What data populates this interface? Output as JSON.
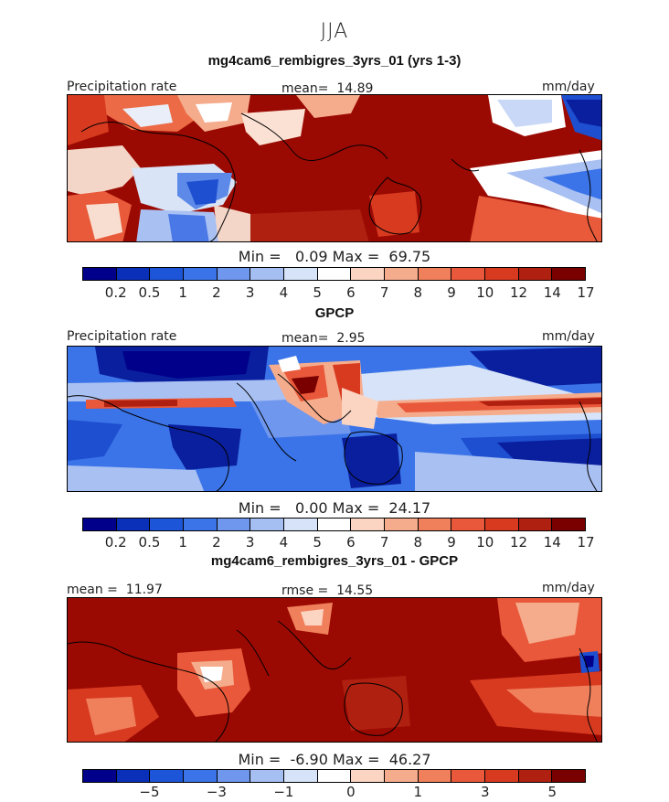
{
  "season": "JJA",
  "panels": [
    {
      "title": "mg4cam6_rembigres_3yrs_01 (yrs 1-3)",
      "left_label": "Precipitation rate",
      "center_label": "mean=  14.89",
      "right_label": "mm/day",
      "minmax": "Min =   0.09 Max =  69.75",
      "ticks": [
        "0.2",
        "0.5",
        "1",
        "2",
        "3",
        "4",
        "5",
        "6",
        "7",
        "8",
        "9",
        "10",
        "12",
        "14",
        "17"
      ]
    },
    {
      "title": "GPCP",
      "left_label": "Precipitation rate",
      "center_label": "mean=  2.95",
      "right_label": "mm/day",
      "minmax": "Min =   0.00 Max =  24.17",
      "ticks": [
        "0.2",
        "0.5",
        "1",
        "2",
        "3",
        "4",
        "5",
        "6",
        "7",
        "8",
        "9",
        "10",
        "12",
        "14",
        "17"
      ]
    },
    {
      "title": "mg4cam6_rembigres_3yrs_01 - GPCP",
      "left_label": "mean =  11.97",
      "center_label": "rmse =  14.55",
      "right_label": "mm/day",
      "minmax": "Min =  -6.90 Max =  46.27",
      "ticks": [
        "−5",
        "−3",
        "−1",
        "0",
        "1",
        "3",
        "5"
      ]
    }
  ],
  "colorbar_colors": [
    "#00008b",
    "#0a2fb8",
    "#1d55d8",
    "#3b74e8",
    "#6f97ee",
    "#a5bff3",
    "#d6e3f8",
    "#ffffff",
    "#fbd5c2",
    "#f5ac8c",
    "#f0805c",
    "#e9583a",
    "#d83a20",
    "#b02010",
    "#7a0000"
  ],
  "colors": {
    "wet": "#7d0000",
    "dry": "#0a1f9e",
    "coast": "#000000"
  }
}
